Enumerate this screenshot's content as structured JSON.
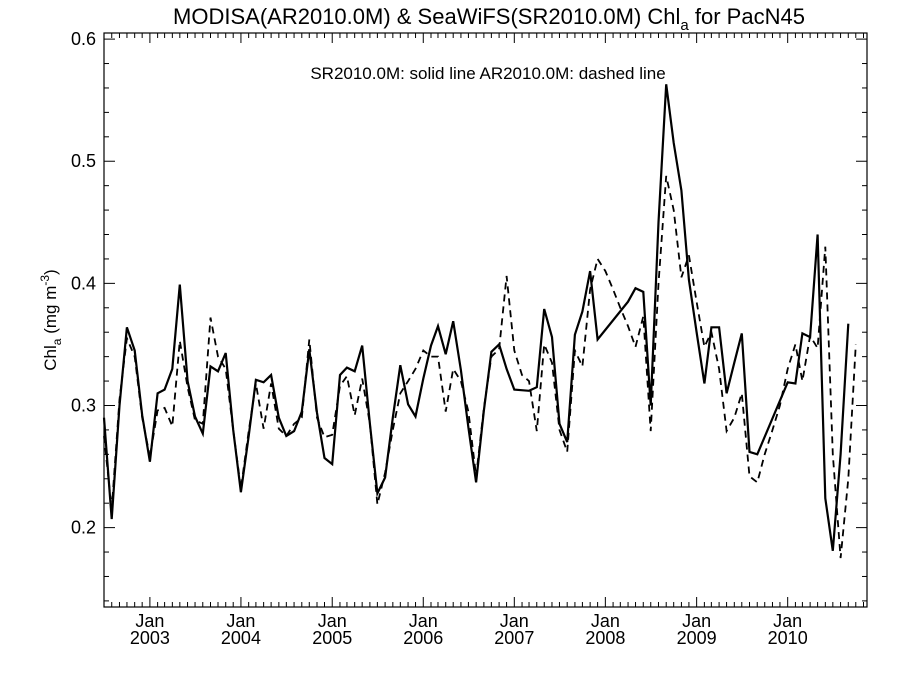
{
  "chart_data": {
    "type": "line",
    "title_main": "MODISA(AR2010.0M) & SeaWiFS(SR2010.0M)  Chl",
    "title_sub": "a",
    "title_tail": " for PacN45",
    "annotation": "SR2010.0M: solid line   AR2010.0M: dashed line",
    "ylabel_main": "Chl",
    "ylabel_sub": "a",
    "ylabel_units": " (mg m",
    "ylabel_sup": "-3",
    "ylabel_close": ")",
    "ylim": [
      0.135,
      0.605
    ],
    "yticks": [
      0.2,
      0.3,
      0.4,
      0.5,
      0.6
    ],
    "ytick_labels": [
      "0.2",
      "0.3",
      "0.4",
      "0.5",
      "0.6"
    ],
    "xlim": [
      "2002-07-01",
      "2010-11-15"
    ],
    "xticks": [
      {
        "date": "2003-01-01",
        "month": "Jan",
        "year": "2003"
      },
      {
        "date": "2004-01-01",
        "month": "Jan",
        "year": "2004"
      },
      {
        "date": "2005-01-01",
        "month": "Jan",
        "year": "2005"
      },
      {
        "date": "2006-01-01",
        "month": "Jan",
        "year": "2006"
      },
      {
        "date": "2007-01-01",
        "month": "Jan",
        "year": "2007"
      },
      {
        "date": "2008-01-01",
        "month": "Jan",
        "year": "2008"
      },
      {
        "date": "2009-01-01",
        "month": "Jan",
        "year": "2009"
      },
      {
        "date": "2010-01-01",
        "month": "Jan",
        "year": "2010"
      }
    ],
    "series": [
      {
        "name": "SR2010.0M",
        "style": "solid",
        "points": [
          [
            "2002-07-01",
            0.29
          ],
          [
            "2002-08-01",
            0.207
          ],
          [
            "2002-09-01",
            0.3
          ],
          [
            "2002-10-01",
            0.364
          ],
          [
            "2002-11-01",
            0.345
          ],
          [
            "2002-12-01",
            0.292
          ],
          [
            "2003-01-01",
            0.254
          ],
          [
            "2003-02-01",
            0.31
          ],
          [
            "2003-03-01",
            0.313
          ],
          [
            "2003-04-01",
            0.33
          ],
          [
            "2003-05-01",
            0.399
          ],
          [
            "2003-06-01",
            0.32
          ],
          [
            "2003-07-01",
            0.291
          ],
          [
            "2003-08-01",
            0.277
          ],
          [
            "2003-09-01",
            0.332
          ],
          [
            "2003-10-01",
            0.328
          ],
          [
            "2003-11-01",
            0.343
          ],
          [
            "2003-12-01",
            0.28
          ],
          [
            "2004-01-01",
            0.229
          ],
          [
            "2004-02-01",
            0.275
          ],
          [
            "2004-03-01",
            0.321
          ],
          [
            "2004-04-01",
            0.319
          ],
          [
            "2004-05-01",
            0.325
          ],
          [
            "2004-06-01",
            0.29
          ],
          [
            "2004-07-01",
            0.275
          ],
          [
            "2004-08-01",
            0.279
          ],
          [
            "2004-09-01",
            0.295
          ],
          [
            "2004-10-01",
            0.346
          ],
          [
            "2004-11-01",
            0.294
          ],
          [
            "2004-12-01",
            0.257
          ],
          [
            "2005-01-01",
            0.252
          ],
          [
            "2005-02-01",
            0.325
          ],
          [
            "2005-03-01",
            0.331
          ],
          [
            "2005-04-01",
            0.328
          ],
          [
            "2005-05-01",
            0.349
          ],
          [
            "2005-06-01",
            0.285
          ],
          [
            "2005-07-01",
            0.228
          ],
          [
            "2005-08-01",
            0.241
          ],
          [
            "2005-09-01",
            0.29
          ],
          [
            "2005-10-01",
            0.333
          ],
          [
            "2005-11-01",
            0.301
          ],
          [
            "2005-12-01",
            0.291
          ],
          [
            "2006-01-01",
            0.322
          ],
          [
            "2006-02-01",
            0.349
          ],
          [
            "2006-03-01",
            0.365
          ],
          [
            "2006-04-01",
            0.342
          ],
          [
            "2006-05-01",
            0.369
          ],
          [
            "2006-06-01",
            0.329
          ],
          [
            "2006-07-01",
            0.282
          ],
          [
            "2006-08-01",
            0.237
          ],
          [
            "2006-09-01",
            0.296
          ],
          [
            "2006-10-01",
            0.344
          ],
          [
            "2006-11-01",
            0.35
          ],
          [
            "2006-12-01",
            0.33
          ],
          [
            "2007-01-01",
            0.313
          ],
          [
            "2007-03-01",
            0.312
          ],
          [
            "2007-04-01",
            0.315
          ],
          [
            "2007-05-01",
            0.379
          ],
          [
            "2007-06-01",
            0.356
          ],
          [
            "2007-07-01",
            0.285
          ],
          [
            "2007-08-01",
            0.27
          ],
          [
            "2007-09-01",
            0.358
          ],
          [
            "2007-10-01",
            0.377
          ],
          [
            "2007-11-01",
            0.41
          ],
          [
            "2007-12-01",
            0.354
          ],
          [
            "2008-04-01",
            0.385
          ],
          [
            "2008-05-01",
            0.396
          ],
          [
            "2008-06-01",
            0.393
          ],
          [
            "2008-07-01",
            0.3
          ],
          [
            "2008-08-01",
            0.45
          ],
          [
            "2008-09-01",
            0.563
          ],
          [
            "2008-10-01",
            0.515
          ],
          [
            "2008-11-01",
            0.476
          ],
          [
            "2008-12-01",
            0.403
          ],
          [
            "2009-01-01",
            0.36
          ],
          [
            "2009-02-01",
            0.318
          ],
          [
            "2009-03-01",
            0.364
          ],
          [
            "2009-04-01",
            0.364
          ],
          [
            "2009-05-01",
            0.31
          ],
          [
            "2009-06-01",
            0.335
          ],
          [
            "2009-07-01",
            0.359
          ],
          [
            "2009-08-01",
            0.262
          ],
          [
            "2009-09-01",
            0.26
          ],
          [
            "2010-01-01",
            0.319
          ],
          [
            "2010-02-01",
            0.318
          ],
          [
            "2010-03-01",
            0.359
          ],
          [
            "2010-04-01",
            0.356
          ],
          [
            "2010-05-01",
            0.44
          ],
          [
            "2010-06-01",
            0.224
          ],
          [
            "2010-07-01",
            0.181
          ],
          [
            "2010-08-01",
            0.26
          ],
          [
            "2010-09-01",
            0.367
          ]
        ]
      },
      {
        "name": "AR2010.0M",
        "style": "dashed",
        "points": [
          [
            "2002-07-01",
            0.275
          ],
          [
            "2002-08-01",
            0.215
          ],
          [
            "2002-09-01",
            0.305
          ],
          [
            "2002-10-01",
            0.355
          ],
          [
            "2002-11-01",
            0.34
          ],
          [
            "2002-12-01",
            0.29
          ],
          [
            "2003-01-01",
            0.258
          ],
          [
            "2003-02-01",
            0.296
          ],
          [
            "2003-03-01",
            0.298
          ],
          [
            "2003-04-01",
            0.283
          ],
          [
            "2003-05-01",
            0.353
          ],
          [
            "2003-06-01",
            0.315
          ],
          [
            "2003-07-01",
            0.288
          ],
          [
            "2003-08-01",
            0.285
          ],
          [
            "2003-09-01",
            0.372
          ],
          [
            "2003-10-01",
            0.34
          ],
          [
            "2003-11-01",
            0.33
          ],
          [
            "2003-12-01",
            0.28
          ],
          [
            "2004-01-01",
            0.232
          ],
          [
            "2004-02-01",
            0.279
          ],
          [
            "2004-03-01",
            0.318
          ],
          [
            "2004-04-01",
            0.281
          ],
          [
            "2004-05-01",
            0.318
          ],
          [
            "2004-06-01",
            0.281
          ],
          [
            "2004-07-01",
            0.275
          ],
          [
            "2004-08-01",
            0.285
          ],
          [
            "2004-09-01",
            0.29
          ],
          [
            "2004-10-01",
            0.354
          ],
          [
            "2004-11-01",
            0.29
          ],
          [
            "2004-12-01",
            0.274
          ],
          [
            "2005-01-01",
            0.276
          ],
          [
            "2005-02-01",
            0.316
          ],
          [
            "2005-03-01",
            0.324
          ],
          [
            "2005-04-01",
            0.292
          ],
          [
            "2005-05-01",
            0.322
          ],
          [
            "2005-06-01",
            0.285
          ],
          [
            "2005-07-01",
            0.219
          ],
          [
            "2005-08-01",
            0.245
          ],
          [
            "2005-09-01",
            0.28
          ],
          [
            "2005-10-01",
            0.31
          ],
          [
            "2005-11-01",
            0.32
          ],
          [
            "2005-12-01",
            0.33
          ],
          [
            "2006-01-01",
            0.345
          ],
          [
            "2006-02-01",
            0.34
          ],
          [
            "2006-03-01",
            0.34
          ],
          [
            "2006-04-01",
            0.295
          ],
          [
            "2006-05-01",
            0.33
          ],
          [
            "2006-06-01",
            0.32
          ],
          [
            "2006-07-01",
            0.295
          ],
          [
            "2006-08-01",
            0.242
          ],
          [
            "2006-09-01",
            0.298
          ],
          [
            "2006-10-01",
            0.34
          ],
          [
            "2006-11-01",
            0.346
          ],
          [
            "2006-12-01",
            0.406
          ],
          [
            "2007-01-01",
            0.345
          ],
          [
            "2007-02-01",
            0.325
          ],
          [
            "2007-03-01",
            0.32
          ],
          [
            "2007-04-01",
            0.279
          ],
          [
            "2007-05-01",
            0.35
          ],
          [
            "2007-06-01",
            0.335
          ],
          [
            "2007-07-01",
            0.28
          ],
          [
            "2007-08-01",
            0.262
          ],
          [
            "2007-09-01",
            0.345
          ],
          [
            "2007-10-01",
            0.332
          ],
          [
            "2007-11-01",
            0.395
          ],
          [
            "2007-12-01",
            0.42
          ],
          [
            "2008-01-01",
            0.41
          ],
          [
            "2008-02-01",
            0.395
          ],
          [
            "2008-03-01",
            0.38
          ],
          [
            "2008-04-01",
            0.365
          ],
          [
            "2008-05-01",
            0.348
          ],
          [
            "2008-06-01",
            0.373
          ],
          [
            "2008-07-01",
            0.279
          ],
          [
            "2008-08-01",
            0.4
          ],
          [
            "2008-09-01",
            0.488
          ],
          [
            "2008-10-01",
            0.46
          ],
          [
            "2008-11-01",
            0.405
          ],
          [
            "2008-12-01",
            0.423
          ],
          [
            "2009-01-01",
            0.385
          ],
          [
            "2009-02-01",
            0.348
          ],
          [
            "2009-03-01",
            0.36
          ],
          [
            "2009-04-01",
            0.33
          ],
          [
            "2009-05-01",
            0.279
          ],
          [
            "2009-06-01",
            0.29
          ],
          [
            "2009-07-01",
            0.31
          ],
          [
            "2009-08-01",
            0.242
          ],
          [
            "2009-09-01",
            0.237
          ],
          [
            "2009-10-01",
            0.26
          ],
          [
            "2009-11-01",
            0.28
          ],
          [
            "2009-12-01",
            0.3
          ],
          [
            "2010-01-01",
            0.33
          ],
          [
            "2010-02-01",
            0.35
          ],
          [
            "2010-03-01",
            0.32
          ],
          [
            "2010-04-01",
            0.357
          ],
          [
            "2010-05-01",
            0.347
          ],
          [
            "2010-06-01",
            0.43
          ],
          [
            "2010-07-01",
            0.26
          ],
          [
            "2010-08-01",
            0.175
          ],
          [
            "2010-09-01",
            0.24
          ],
          [
            "2010-10-01",
            0.35
          ]
        ]
      }
    ]
  }
}
